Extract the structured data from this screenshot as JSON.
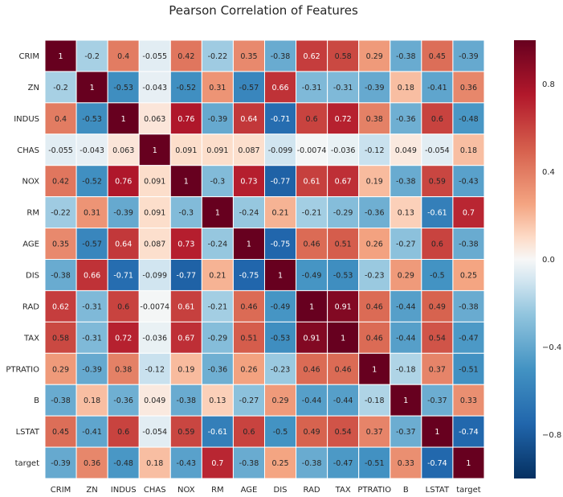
{
  "chart_data": {
    "type": "heatmap",
    "title": "Pearson Correlation of Features",
    "xlabel": "",
    "ylabel": "",
    "labels": [
      "CRIM",
      "ZN",
      "INDUS",
      "CHAS",
      "NOX",
      "RM",
      "AGE",
      "DIS",
      "RAD",
      "TAX",
      "PTRATIO",
      "B",
      "LSTAT",
      "target"
    ],
    "matrix": [
      [
        1,
        -0.2,
        0.4,
        -0.055,
        0.42,
        -0.22,
        0.35,
        -0.38,
        0.62,
        0.58,
        0.29,
        -0.38,
        0.45,
        -0.39
      ],
      [
        -0.2,
        1,
        -0.53,
        -0.043,
        -0.52,
        0.31,
        -0.57,
        0.66,
        -0.31,
        -0.31,
        -0.39,
        0.18,
        -0.41,
        0.36
      ],
      [
        0.4,
        -0.53,
        1,
        0.063,
        0.76,
        -0.39,
        0.64,
        -0.71,
        0.6,
        0.72,
        0.38,
        -0.36,
        0.6,
        -0.48
      ],
      [
        -0.055,
        -0.043,
        0.063,
        1,
        0.091,
        0.091,
        0.087,
        -0.099,
        -0.0074,
        -0.036,
        -0.12,
        0.049,
        -0.054,
        0.18
      ],
      [
        0.42,
        -0.52,
        0.76,
        0.091,
        1,
        -0.3,
        0.73,
        -0.77,
        0.61,
        0.67,
        0.19,
        -0.38,
        0.59,
        -0.43
      ],
      [
        -0.22,
        0.31,
        -0.39,
        0.091,
        -0.3,
        1,
        -0.24,
        0.21,
        -0.21,
        -0.29,
        -0.36,
        0.13,
        -0.61,
        0.7
      ],
      [
        0.35,
        -0.57,
        0.64,
        0.087,
        0.73,
        -0.24,
        1,
        -0.75,
        0.46,
        0.51,
        0.26,
        -0.27,
        0.6,
        -0.38
      ],
      [
        -0.38,
        0.66,
        -0.71,
        -0.099,
        -0.77,
        0.21,
        -0.75,
        1,
        -0.49,
        -0.53,
        -0.23,
        0.29,
        -0.5,
        0.25
      ],
      [
        0.62,
        -0.31,
        0.6,
        -0.0074,
        0.61,
        -0.21,
        0.46,
        -0.49,
        1,
        0.91,
        0.46,
        -0.44,
        0.49,
        -0.38
      ],
      [
        0.58,
        -0.31,
        0.72,
        -0.036,
        0.67,
        -0.29,
        0.51,
        -0.53,
        0.91,
        1,
        0.46,
        -0.44,
        0.54,
        -0.47
      ],
      [
        0.29,
        -0.39,
        0.38,
        -0.12,
        0.19,
        -0.36,
        0.26,
        -0.23,
        0.46,
        0.46,
        1,
        -0.18,
        0.37,
        -0.51
      ],
      [
        -0.38,
        0.18,
        -0.36,
        0.049,
        -0.38,
        0.13,
        -0.27,
        0.29,
        -0.44,
        -0.44,
        -0.18,
        1,
        -0.37,
        0.33
      ],
      [
        0.45,
        -0.41,
        0.6,
        -0.054,
        0.59,
        -0.61,
        0.6,
        -0.5,
        0.49,
        0.54,
        0.37,
        -0.37,
        1,
        -0.74
      ],
      [
        -0.39,
        0.36,
        -0.48,
        0.18,
        -0.43,
        0.7,
        -0.38,
        0.25,
        -0.38,
        -0.47,
        -0.51,
        0.33,
        -0.74,
        1
      ]
    ],
    "colorbar": {
      "min": -1,
      "max": 1,
      "ticks": [
        0.8,
        0.4,
        0.0,
        -0.4,
        -0.8
      ],
      "tick_labels": [
        "0.8",
        "0.4",
        "0.0",
        "−0.4",
        "−0.8"
      ],
      "colormap": "RdBu_r"
    },
    "grid": "white cell separators"
  }
}
